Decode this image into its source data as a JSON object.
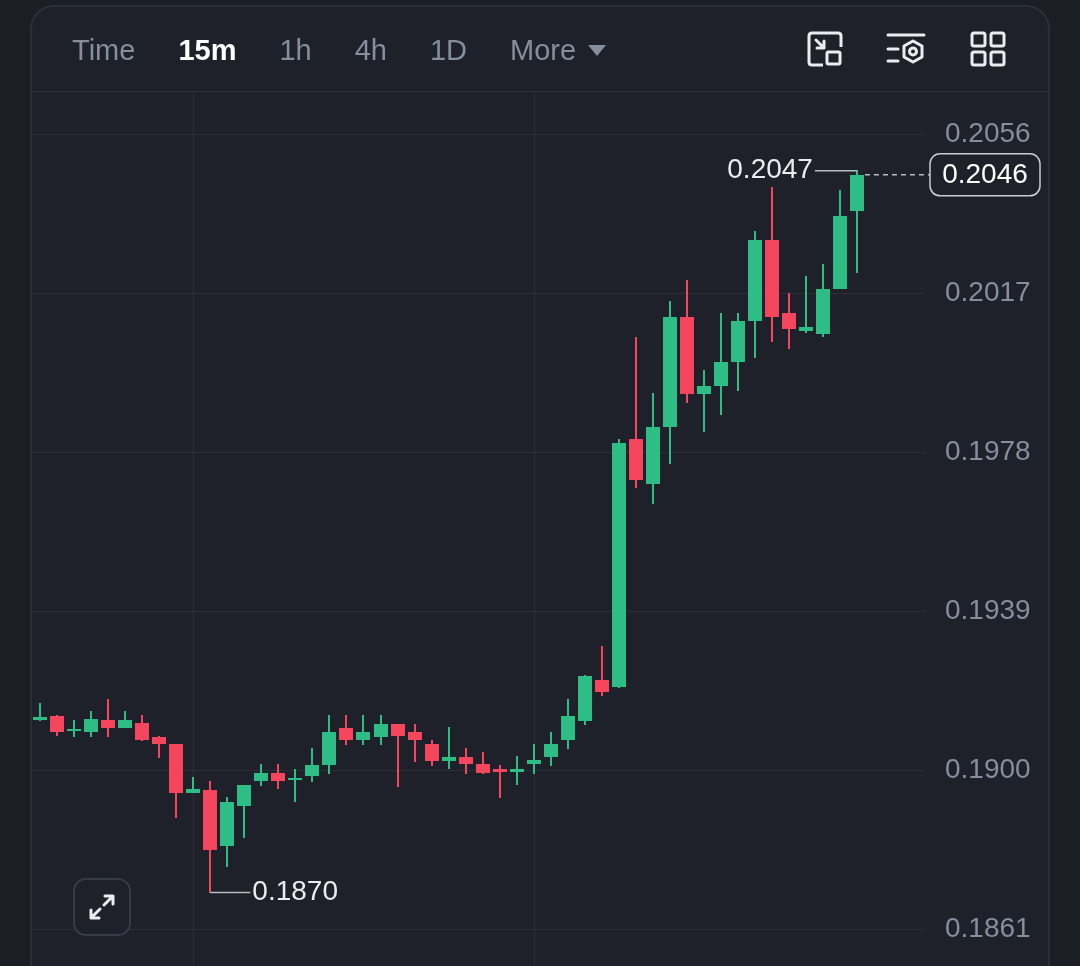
{
  "chart_data": [
    {
      "type": "other",
      "annotations": [
        "Time",
        "15m",
        "1h",
        "4h",
        "1D",
        "More"
      ]
    },
    {
      "type": "candlestick",
      "categories": [
        null,
        null,
        null,
        null,
        null,
        null,
        null,
        null,
        null,
        null,
        null,
        null,
        null,
        null,
        null,
        null,
        null,
        null,
        null,
        null,
        null,
        null,
        null,
        null,
        null,
        null,
        null,
        null,
        null,
        null,
        null,
        null,
        null,
        null,
        null,
        null,
        null,
        null,
        null,
        null,
        null,
        null,
        null,
        null,
        null,
        null,
        null,
        null,
        null
      ],
      "ohlc": [
        [
          0.19122,
          0.19164,
          0.19122,
          0.1913
        ],
        [
          0.19134,
          0.19134,
          0.19084,
          0.19094
        ],
        [
          0.19095,
          0.19122,
          0.19082,
          0.191
        ],
        [
          0.19094,
          0.19144,
          0.19082,
          0.19125
        ],
        [
          0.19123,
          0.19173,
          0.19082,
          0.19104
        ],
        [
          0.19104,
          0.19144,
          0.19104,
          0.19123
        ],
        [
          0.19115,
          0.19134,
          0.19073,
          0.19073
        ],
        [
          0.19082,
          0.19082,
          0.19031,
          0.19064
        ],
        [
          0.19063,
          0.19063,
          0.18883,
          0.18944
        ],
        [
          0.18944,
          0.18983,
          0.18944,
          0.18954
        ],
        [
          0.18952,
          0.18971,
          0.187,
          0.18803
        ],
        [
          0.18813,
          0.18933,
          0.18763,
          0.18922
        ],
        [
          0.18913,
          0.18963,
          0.18834,
          0.18963
        ],
        [
          0.18973,
          0.19014,
          0.18963,
          0.18993
        ],
        [
          0.18993,
          0.19014,
          0.18954,
          0.18973
        ],
        [
          0.18975,
          0.19002,
          0.18924,
          0.18982
        ],
        [
          0.18985,
          0.19053,
          0.18973,
          0.19012
        ],
        [
          0.19012,
          0.19133,
          0.18993,
          0.19094
        ],
        [
          0.19103,
          0.19133,
          0.19063,
          0.19073
        ],
        [
          0.19073,
          0.19133,
          0.19063,
          0.19094
        ],
        [
          0.19082,
          0.19133,
          0.19063,
          0.19113
        ],
        [
          0.19113,
          0.19113,
          0.18961,
          0.19084
        ],
        [
          0.19094,
          0.19113,
          0.19022,
          0.19074
        ],
        [
          0.19064,
          0.19073,
          0.19012,
          0.19022
        ],
        [
          0.19022,
          0.19104,
          0.19003,
          0.19033
        ],
        [
          0.19033,
          0.19053,
          0.18993,
          0.19014
        ],
        [
          0.19014,
          0.19043,
          0.18993,
          0.18993
        ],
        [
          0.19004,
          0.19012,
          0.18934,
          0.18995
        ],
        [
          0.18995,
          0.19033,
          0.18964,
          0.19004
        ],
        [
          0.19014,
          0.19063,
          0.18993,
          0.19024
        ],
        [
          0.19033,
          0.19092,
          0.19012,
          0.19063
        ],
        [
          0.19073,
          0.19173,
          0.19052,
          0.19133
        ],
        [
          0.19121,
          0.19231,
          0.19113,
          0.19231
        ],
        [
          0.19222,
          0.19304,
          0.19183,
          0.19192
        ],
        [
          0.19203,
          0.1981,
          0.19203,
          0.19802
        ],
        [
          0.19811,
          0.2006,
          0.19693,
          0.19712
        ],
        [
          0.19702,
          0.19923,
          0.19654,
          0.19841
        ],
        [
          0.19841,
          0.2015,
          0.19753,
          0.20111
        ],
        [
          0.20111,
          0.20201,
          0.19901,
          0.19923
        ],
        [
          0.19923,
          0.19981,
          0.19831,
          0.19941
        ],
        [
          0.19942,
          0.20119,
          0.19872,
          0.2
        ],
        [
          0.2,
          0.20121,
          0.19932,
          0.20102
        ],
        [
          0.20102,
          0.20321,
          0.20012,
          0.203
        ],
        [
          0.203,
          0.2043,
          0.20051,
          0.20111
        ],
        [
          0.20121,
          0.2017,
          0.20033,
          0.20082
        ],
        [
          0.20078,
          0.2021,
          0.20074,
          0.20086
        ],
        [
          0.2007,
          0.2024,
          0.20063,
          0.20181
        ],
        [
          0.20181,
          0.20421,
          0.20181,
          0.2036
        ],
        [
          0.2037,
          0.2047,
          0.2022,
          0.2046
        ]
      ],
      "colors": [
        "#2ebd85",
        "#f6465d",
        "#2ebd85",
        "#2ebd85",
        "#f6465d",
        "#2ebd85",
        "#f6465d",
        "#f6465d",
        "#f6465d",
        "#2ebd85",
        "#f6465d",
        "#2ebd85",
        "#2ebd85",
        "#2ebd85",
        "#f6465d",
        "#2ebd85",
        "#2ebd85",
        "#2ebd85",
        "#f6465d",
        "#2ebd85",
        "#2ebd85",
        "#f6465d",
        "#f6465d",
        "#f6465d",
        "#2ebd85",
        "#f6465d",
        "#f6465d",
        "#f6465d",
        "#2ebd85",
        "#2ebd85",
        "#2ebd85",
        "#2ebd85",
        "#2ebd85",
        "#f6465d",
        "#2ebd85",
        "#f6465d",
        "#2ebd85",
        "#2ebd85",
        "#f6465d",
        "#2ebd85",
        "#2ebd85",
        "#2ebd85",
        "#2ebd85",
        "#f6465d",
        "#f6465d",
        "#2ebd85",
        "#2ebd85",
        "#2ebd85",
        "#2ebd85"
      ],
      "ylim": [
        0.1861,
        0.2056
      ],
      "yticks": [
        0.1861,
        {
          "value": 0.19,
          "label": "0.1900"
        },
        0.1939,
        0.1978,
        0.2017,
        0.2056
      ],
      "grid": "y",
      "tick_labels": "y",
      "ref_lines": [
        {
          "axis": "y",
          "value": 0.2046,
          "label": "0.2046",
          "line_style": "dashed",
          "color": "#b7bdc6"
        }
      ],
      "annotations": [
        "0.2047",
        "0.1870"
      ]
    }
  ]
}
